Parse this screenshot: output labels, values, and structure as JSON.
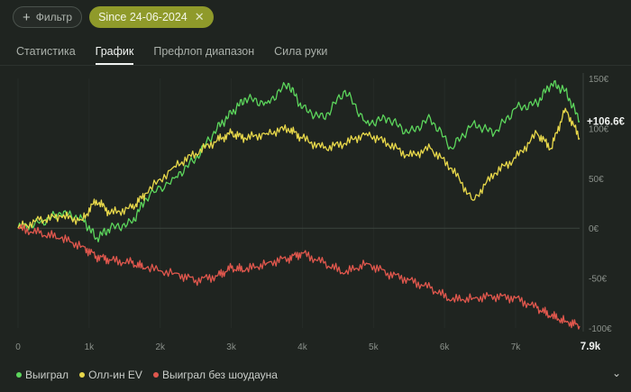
{
  "header": {
    "filter_label": "Фильтр",
    "date_chip_label": "Since 24-06-2024"
  },
  "tabs": [
    {
      "label": "Статистика",
      "active": false
    },
    {
      "label": "График",
      "active": true
    },
    {
      "label": "Префлоп диапазон",
      "active": false
    },
    {
      "label": "Сила руки",
      "active": false
    }
  ],
  "legend": [
    {
      "label": "Выиграл",
      "color": "#5cd65c"
    },
    {
      "label": "Олл-ин EV",
      "color": "#e8d84a"
    },
    {
      "label": "Выиграл без шоудауна",
      "color": "#e0574d"
    }
  ],
  "chart_data": {
    "type": "line",
    "x_unit": "hands",
    "ylim": [
      -100,
      150
    ],
    "xlim": [
      0,
      7900
    ],
    "y_ticks": [
      "150€",
      "100€",
      "50€",
      "0€",
      "-50€",
      "-100€"
    ],
    "y_tick_values": [
      150,
      100,
      50,
      0,
      -50,
      -100
    ],
    "x_ticks": [
      "0",
      "1k",
      "2k",
      "3k",
      "4k",
      "5k",
      "6k",
      "7k"
    ],
    "x_tick_values": [
      0,
      1000,
      2000,
      3000,
      4000,
      5000,
      6000,
      7000
    ],
    "x_end_label": "7.9k",
    "end_value_label": "+106.6€",
    "x": [
      0,
      300,
      600,
      900,
      1100,
      1300,
      1600,
      1800,
      2200,
      2500,
      2800,
      3000,
      3200,
      3500,
      3800,
      4000,
      4300,
      4600,
      4900,
      5200,
      5500,
      5800,
      6100,
      6400,
      6700,
      7000,
      7300,
      7500,
      7700,
      7900
    ],
    "series": [
      {
        "name": "Выиграл",
        "color": "#5cd65c",
        "values": [
          0,
          5,
          15,
          10,
          -10,
          0,
          5,
          30,
          50,
          70,
          100,
          115,
          130,
          125,
          145,
          120,
          110,
          138,
          105,
          110,
          95,
          110,
          80,
          105,
          95,
          120,
          125,
          145,
          138,
          107
        ]
      },
      {
        "name": "Олл-ин EV",
        "color": "#e8d84a",
        "values": [
          0,
          8,
          12,
          8,
          28,
          15,
          20,
          35,
          62,
          75,
          88,
          95,
          90,
          95,
          100,
          90,
          80,
          85,
          95,
          85,
          72,
          80,
          60,
          28,
          55,
          70,
          95,
          80,
          120,
          90
        ]
      },
      {
        "name": "Выиграл без шоудауна",
        "color": "#e0574d",
        "values": [
          0,
          -5,
          -10,
          -18,
          -28,
          -32,
          -35,
          -40,
          -45,
          -52,
          -48,
          -40,
          -42,
          -35,
          -30,
          -25,
          -35,
          -45,
          -35,
          -45,
          -52,
          -60,
          -72,
          -70,
          -68,
          -70,
          -80,
          -88,
          -93,
          -98
        ]
      }
    ]
  }
}
